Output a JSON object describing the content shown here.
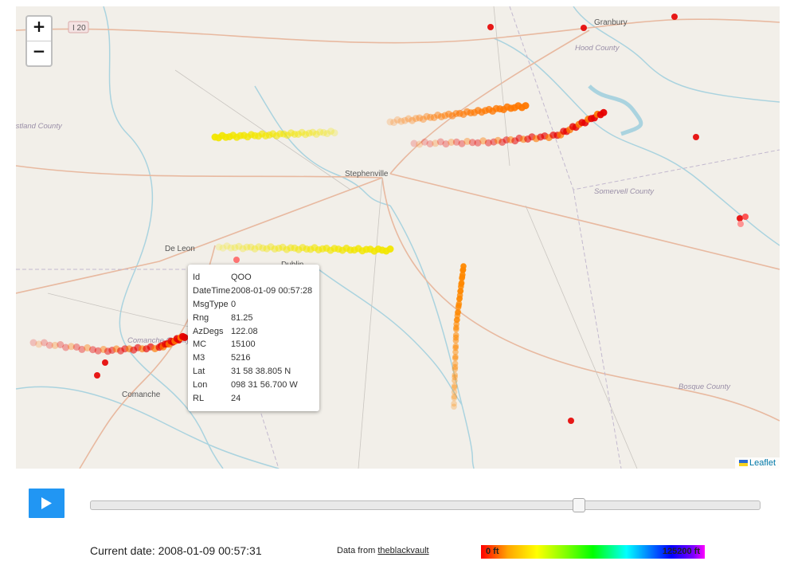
{
  "map": {
    "zoom_in": "+",
    "zoom_out": "−",
    "attribution": "Leaflet",
    "places": [
      {
        "name": "Granbury",
        "kind": "city"
      },
      {
        "name": "Hood County",
        "kind": "county"
      },
      {
        "name": "I 20",
        "kind": "shield"
      },
      {
        "name": "Stephenville",
        "kind": "city"
      },
      {
        "name": "De Leon",
        "kind": "city"
      },
      {
        "name": "Dublin",
        "kind": "city"
      },
      {
        "name": "Comanche",
        "kind": "city"
      },
      {
        "name": "Comanche County",
        "kind": "county"
      },
      {
        "name": "Eastland County",
        "kind": "county"
      },
      {
        "name": "Somervell County",
        "kind": "county"
      },
      {
        "name": "Bosque County",
        "kind": "county"
      }
    ]
  },
  "popup": {
    "rows": [
      {
        "key": "Id",
        "value": "QOO"
      },
      {
        "key": "DateTime",
        "value": "2008-01-09 00:57:28"
      },
      {
        "key": "MsgType",
        "value": "0"
      },
      {
        "key": "Rng",
        "value": "81.25"
      },
      {
        "key": "AzDegs",
        "value": "122.08"
      },
      {
        "key": "MC",
        "value": "15100"
      },
      {
        "key": "M3",
        "value": "5216"
      },
      {
        "key": "Lat",
        "value": "31 58 38.805 N"
      },
      {
        "key": "Lon",
        "value": "098 31 56.700 W"
      },
      {
        "key": "RL",
        "value": "24"
      }
    ]
  },
  "playback": {
    "current_date_label": "Current date:",
    "current_date": "2008-01-09 00:57:31",
    "slider_fraction": 0.73,
    "data_from_label": "Data from",
    "data_source": "theblackvault"
  },
  "colorbar": {
    "min_label": "0 ft",
    "max_label": "125200 ft",
    "colors": [
      "#ff0000",
      "#ffa500",
      "#ffff00",
      "#00ff00",
      "#00ffff",
      "#0000ff",
      "#ff00ff"
    ]
  },
  "tracks": [
    {
      "name": "track-north-yellow",
      "color": "#f2e600",
      "altitude_ft": 4000
    },
    {
      "name": "track-northeast-orange",
      "color": "#ff7700",
      "altitude_ft": 2500
    },
    {
      "name": "track-northeast-red",
      "color": "#e60000",
      "altitude_ft": 500
    },
    {
      "name": "track-middle-yellow",
      "color": "#f2e600",
      "altitude_ft": 4000
    },
    {
      "name": "track-southwest-red",
      "color": "#e60000",
      "altitude_ft": 500
    },
    {
      "name": "track-south-orange",
      "color": "#ff8800",
      "altitude_ft": 2500
    }
  ]
}
